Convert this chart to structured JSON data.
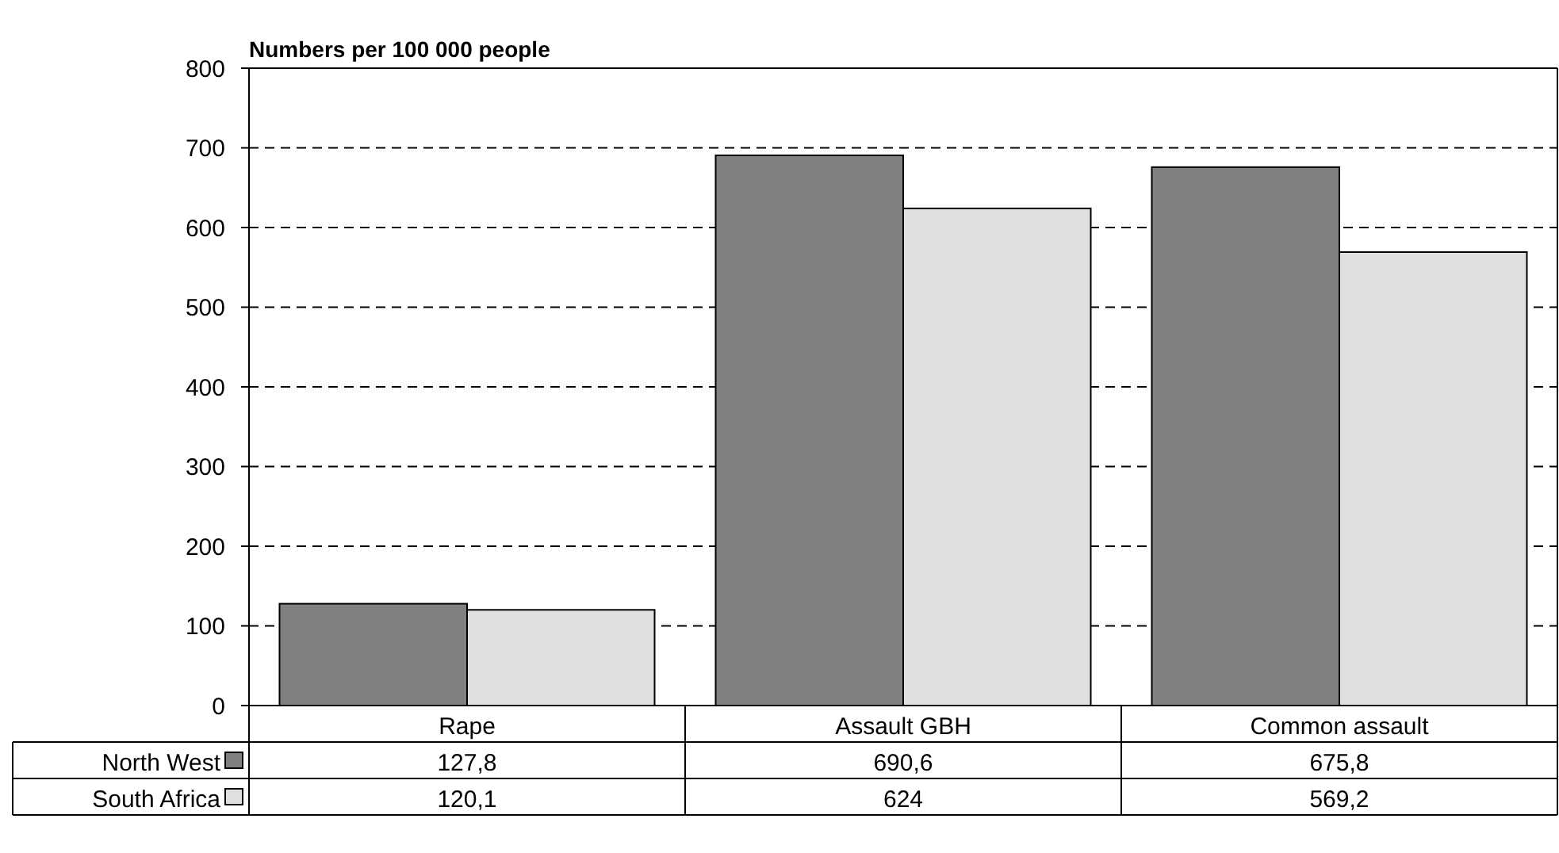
{
  "chart_data": {
    "type": "bar",
    "title": "Numbers per 100 000 people",
    "categories": [
      "Rape",
      "Assault GBH",
      "Common assault"
    ],
    "series": [
      {
        "name": "North West",
        "color": "#808080",
        "values": [
          127.8,
          690.6,
          675.8
        ],
        "value_labels": [
          "127,8",
          "690,6",
          "675,8"
        ]
      },
      {
        "name": "South Africa",
        "color": "#e0e0e0",
        "values": [
          120.1,
          624,
          569.2
        ],
        "value_labels": [
          "120,1",
          "624",
          "569,2"
        ]
      }
    ],
    "ylim": [
      0,
      800
    ],
    "yticks": [
      0,
      100,
      200,
      300,
      400,
      500,
      600,
      700,
      800
    ],
    "grid": "y",
    "legend": "bottom"
  }
}
